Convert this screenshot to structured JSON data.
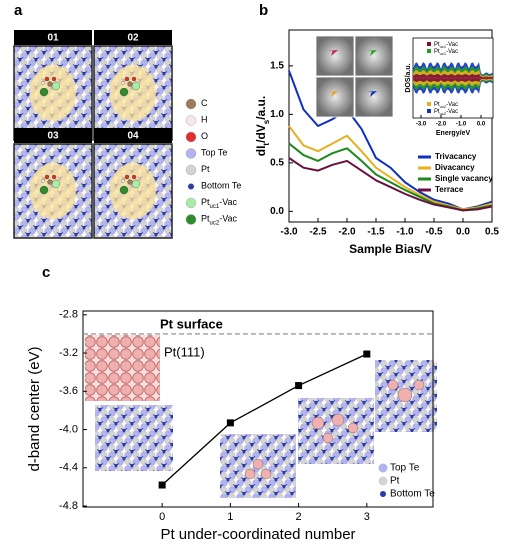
{
  "panels": {
    "a": "a",
    "b": "b",
    "c": "c"
  },
  "panel_a": {
    "tiles": [
      "01",
      "02",
      "03",
      "04"
    ],
    "legend": [
      {
        "label": [
          {
            "text": "C"
          }
        ],
        "color": "#9c7a5a"
      },
      {
        "label": [
          {
            "text": "H"
          }
        ],
        "color": "#f6e8e8"
      },
      {
        "label": [
          {
            "text": "O"
          }
        ],
        "color": "#e03030"
      },
      {
        "label": [
          {
            "text": "Top Te"
          }
        ],
        "color": "#b3b3f0"
      },
      {
        "label": [
          {
            "text": "Pt"
          }
        ],
        "color": "#d4d4d4"
      },
      {
        "label": [
          {
            "text": "Bottom Te"
          }
        ],
        "color": "#2a3aa8"
      },
      {
        "label": [
          {
            "text": "Pt"
          },
          {
            "text": "uc1",
            "sub": true
          },
          {
            "text": "-Vac"
          }
        ],
        "color": "#a8eca8"
      },
      {
        "label": [
          {
            "text": "Pt"
          },
          {
            "text": "uc2",
            "sub": true
          },
          {
            "text": "-Vac"
          }
        ],
        "color": "#2e8b2e"
      }
    ]
  },
  "chart_data": [
    {
      "type": "line",
      "xlabel": "Sample Bias/V",
      "ylabel": [
        {
          "text": "dI"
        },
        {
          "text": "t",
          "sub": true
        },
        {
          "text": "/dV"
        },
        {
          "text": "s",
          "sub": true
        },
        {
          "text": "/a.u."
        }
      ],
      "x": [
        -3,
        -2.75,
        -2.5,
        -2.25,
        -2,
        -1.75,
        -1.5,
        -1.25,
        -1,
        -0.75,
        -0.5,
        -0.25,
        0,
        0.25,
        0.5
      ],
      "series": [
        {
          "name": "Trivacancy",
          "color": "#1030c0",
          "values": [
            1.45,
            1.05,
            0.88,
            0.95,
            1.05,
            0.85,
            0.55,
            0.45,
            0.3,
            0.2,
            0.12,
            0.08,
            0.02,
            0.05,
            0.1
          ]
        },
        {
          "name": "Divacancy",
          "color": "#e8b020",
          "values": [
            0.88,
            0.68,
            0.62,
            0.7,
            0.78,
            0.62,
            0.45,
            0.35,
            0.25,
            0.17,
            0.1,
            0.06,
            0.02,
            0.04,
            0.08
          ]
        },
        {
          "name": "Single vacancy",
          "color": "#1a8a1a",
          "values": [
            0.7,
            0.58,
            0.52,
            0.6,
            0.65,
            0.52,
            0.38,
            0.3,
            0.22,
            0.15,
            0.08,
            0.05,
            0.01,
            0.03,
            0.06
          ]
        },
        {
          "name": "Terrace",
          "color": "#6a1040",
          "values": [
            0.55,
            0.45,
            0.42,
            0.48,
            0.52,
            0.42,
            0.32,
            0.25,
            0.18,
            0.12,
            0.07,
            0.04,
            0.01,
            0.02,
            0.05
          ]
        }
      ],
      "xlim": [
        -3,
        0.5
      ],
      "xticks": [
        {
          "value": -3,
          "label": "-3.0"
        },
        {
          "value": -2.5,
          "label": "-2.5"
        },
        {
          "value": -2,
          "label": "-2.0"
        },
        {
          "value": -1.5,
          "label": "-1.5"
        },
        {
          "value": -1,
          "label": "-1.0"
        },
        {
          "value": -0.5,
          "label": "-0.5"
        },
        {
          "value": 0,
          "label": "0.0"
        },
        0.5
      ],
      "ylim": [
        -0.11,
        1.87
      ],
      "yticks": [
        {
          "value": 0,
          "label": "0.0"
        },
        0.5,
        {
          "value": 1,
          "label": "1.0"
        },
        1.5
      ],
      "legend": "lower right",
      "inset": {
        "xlabel": "Energy/eV",
        "ylabel": "DOS/a.u.",
        "xlim": [
          -3.4,
          0.6
        ],
        "xticks": [
          {
            "value": -3,
            "label": "-3.0"
          },
          {
            "value": -2,
            "label": "-2.0"
          },
          {
            "value": -1,
            "label": "-1.0"
          },
          {
            "value": 0,
            "label": "0.0"
          }
        ],
        "legend_top": [
          {
            "label": [
              {
                "text": "Pt"
              },
              {
                "text": "uc1",
                "sub": true
              },
              {
                "text": "-Vac"
              }
            ],
            "color": "#7a1030"
          },
          {
            "label": [
              {
                "text": "Pt"
              },
              {
                "text": "uc1",
                "sub": true
              },
              {
                "text": "-Vac"
              }
            ],
            "color": "#20a020"
          }
        ],
        "legend_bottom": [
          {
            "label": [
              {
                "text": "Pt"
              },
              {
                "text": "uc2",
                "sub": true
              },
              {
                "text": "-Vac"
              }
            ],
            "color": "#e8b020"
          },
          {
            "label": [
              {
                "text": "Pt"
              },
              {
                "text": "uc2",
                "sub": true
              },
              {
                "text": "-Vac"
              }
            ],
            "color": "#1030c0"
          }
        ]
      }
    },
    {
      "type": "line",
      "xlabel": "Pt under-coordinated number",
      "ylabel": "d-band center (eV)",
      "x": [
        0,
        1,
        2,
        3
      ],
      "series": [
        {
          "color": "#000000",
          "marker": "square",
          "values": [
            -4.58,
            -3.93,
            -3.54,
            -3.21
          ]
        }
      ],
      "xlim": [
        -1.16,
        3.97
      ],
      "xticks": [
        0,
        1,
        2,
        3
      ],
      "ylim": [
        -4.81,
        -2.76
      ],
      "yticks": [
        -2.8,
        -3.2,
        -3.6,
        {
          "value": -4,
          "label": "-4.0"
        },
        -4.4,
        -4.8
      ],
      "reference": {
        "value": -3,
        "label": "Pt surface",
        "color": "#8a8a8a"
      },
      "annotations": [
        "Pt(111)"
      ],
      "legend_items": [
        {
          "label": "Top Te",
          "color": "#b3b3f0"
        },
        {
          "label": "Pt",
          "color": "#d4d4d4"
        },
        {
          "label": "Bottom Te",
          "color": "#2a3aa8"
        }
      ]
    }
  ]
}
